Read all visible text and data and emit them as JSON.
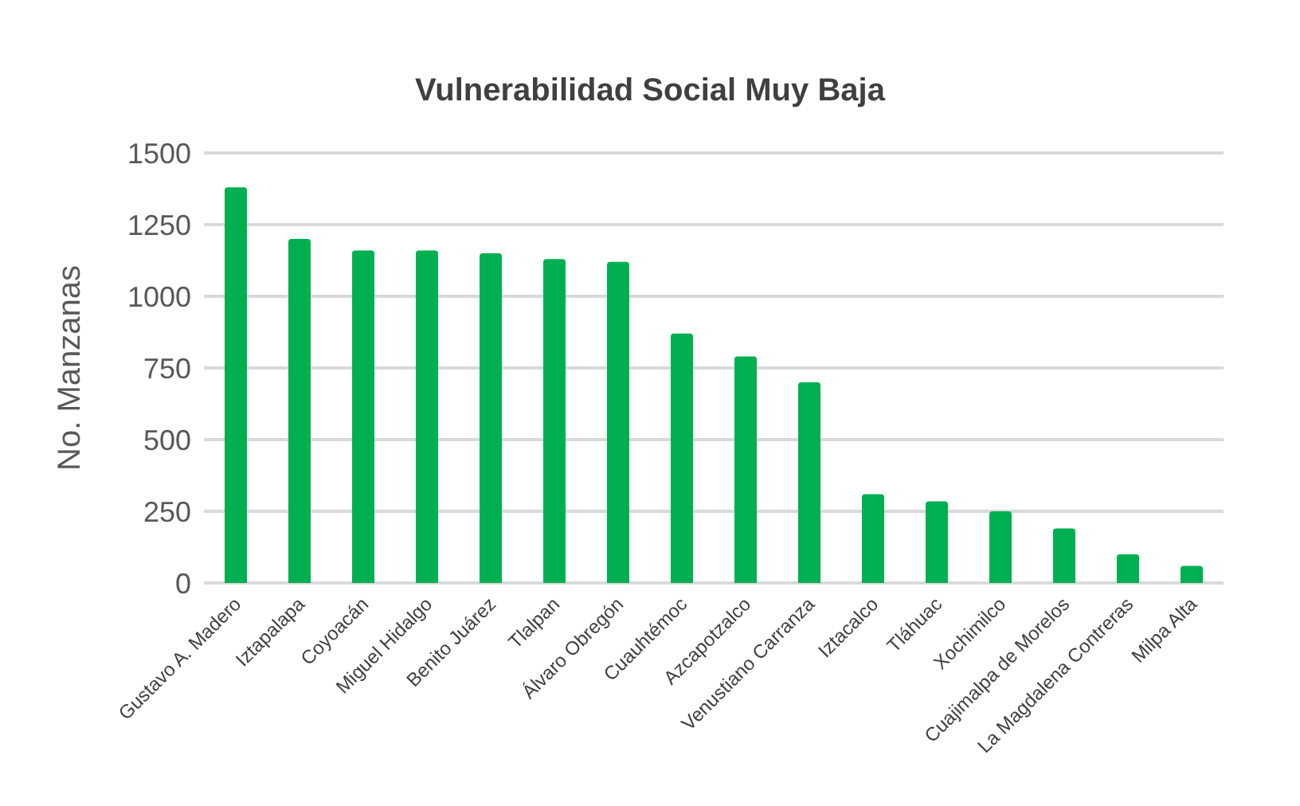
{
  "chart_data": {
    "type": "bar",
    "title": "Vulnerabilidad Social Muy Baja",
    "ylabel": "No. Manzanas",
    "categories": [
      "Gustavo A. Madero",
      "Iztapalapa",
      "Coyoacán",
      "Miguel Hidalgo",
      "Benito Juárez",
      "Tlalpan",
      "Álvaro Obregón",
      "Cuauhtémoc",
      "Azcapotzalco",
      "Venustiano Carranza",
      "Iztacalco",
      "Tláhuac",
      "Xochimilco",
      "Cuajimalpa de Morelos",
      "La Magdalena Contreras",
      "Milpa Alta"
    ],
    "values": [
      1380,
      1200,
      1160,
      1160,
      1150,
      1130,
      1120,
      870,
      790,
      700,
      310,
      285,
      250,
      190,
      100,
      60
    ],
    "color": "#00b050",
    "ylim": [
      0,
      1500
    ],
    "yticks": [
      0,
      250,
      500,
      750,
      1000,
      1250,
      1500
    ],
    "grid": "y"
  }
}
